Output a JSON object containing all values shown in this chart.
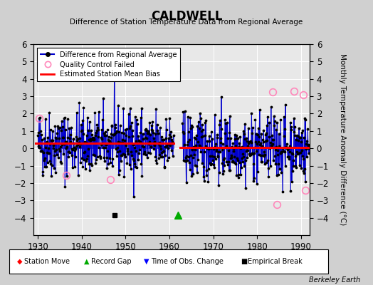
{
  "title": "CALDWELL",
  "subtitle": "Difference of Station Temperature Data from Regional Average",
  "ylabel": "Monthly Temperature Anomaly Difference (°C)",
  "xlabel_years": [
    1930,
    1940,
    1950,
    1960,
    1970,
    1980,
    1990
  ],
  "xlim": [
    1929,
    1992
  ],
  "ylim": [
    -5,
    6
  ],
  "yticks": [
    -4,
    -3,
    -2,
    -1,
    0,
    1,
    2,
    3,
    4,
    5,
    6
  ],
  "background_color": "#d0d0d0",
  "plot_bg_color": "#e8e8e8",
  "grid_color": "#ffffff",
  "line_color": "#0000cc",
  "bias_line_color": "#ff0000",
  "dot_color": "#000000",
  "qc_color": "#ff88bb",
  "watermark": "Berkeley Earth",
  "segment1_x_start": 1929.5,
  "segment1_x_end": 1961.0,
  "segment1_bias": 0.28,
  "segment2_x_start": 1962.5,
  "segment2_x_end": 1992.0,
  "segment2_bias": 0.05,
  "empirical_break_x": 1947.5,
  "empirical_break_y": -3.85,
  "record_gap_x": 1962.0,
  "record_gap_y": -3.85,
  "qc_failed_points": [
    [
      1930.25,
      1.75
    ],
    [
      1936.5,
      -1.55
    ],
    [
      1946.5,
      -1.8
    ],
    [
      1983.5,
      3.25
    ],
    [
      1984.5,
      -3.25
    ],
    [
      1988.5,
      3.3
    ],
    [
      1990.5,
      3.1
    ],
    [
      1991.0,
      -2.4
    ]
  ],
  "seed": 42
}
